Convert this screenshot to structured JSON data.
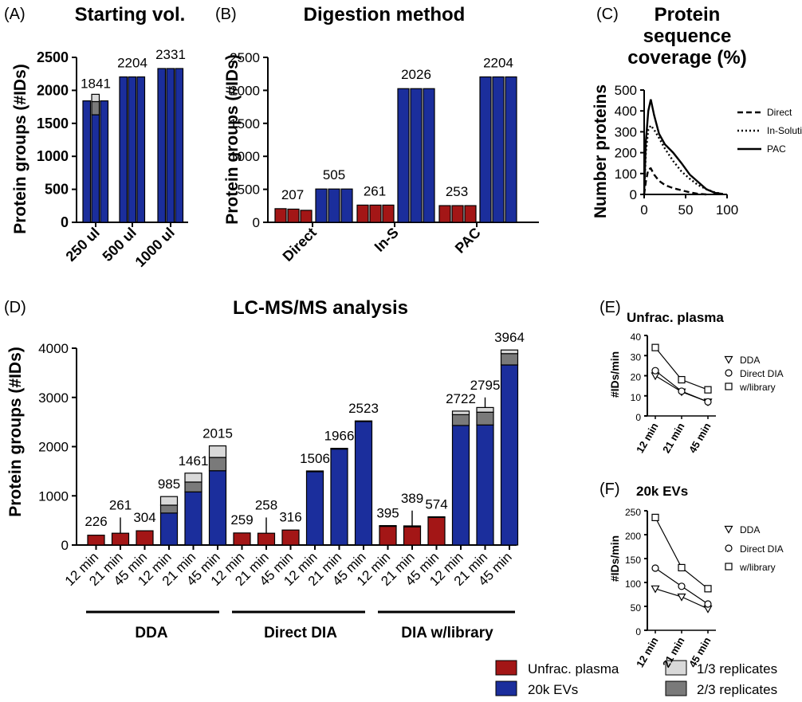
{
  "colors": {
    "unfrac": "#A31616",
    "ev": "#1B2E9C",
    "one_third": "#D9D9D9",
    "two_third": "#7A7A7A",
    "axis": "#000000"
  },
  "legend": {
    "unfrac": "Unfrac. plasma",
    "ev": "20k EVs",
    "one_third": "1/3 replicates",
    "two_third": "2/3 replicates"
  },
  "chart_data": [
    {
      "panel": "(A)",
      "type": "bar",
      "title": "Starting vol.",
      "ylabel": "Protein groups (#IDs)",
      "ylim": [
        0,
        2500
      ],
      "yticks": [
        0,
        500,
        1000,
        1500,
        2000,
        2500
      ],
      "categories": [
        "250 ul",
        "500 ul",
        "1000 ul"
      ],
      "series": [
        {
          "values": [
            [
              1841,
              1630,
              1841
            ],
            [
              2204,
              2204,
              2204
            ],
            [
              2331,
              2331,
              2331
            ]
          ]
        }
      ],
      "stack_two_third": [
        [
          0,
          200,
          0
        ],
        [
          0,
          0,
          0
        ],
        [
          0,
          0,
          0
        ]
      ],
      "stack_one_third": [
        [
          0,
          110,
          0
        ],
        [
          0,
          0,
          0
        ],
        [
          0,
          0,
          0
        ]
      ],
      "labels": [
        "1841",
        "2204",
        "2331"
      ]
    },
    {
      "panel": "(B)",
      "type": "bar",
      "title": "Digestion method",
      "ylabel": "Protein groups (#IDs)",
      "ylim": [
        0,
        2500
      ],
      "yticks": [
        0,
        500,
        1000,
        1500,
        2000,
        2500
      ],
      "categories": [
        "Direct",
        "In-S",
        "PAC"
      ],
      "series": [
        {
          "name": "Unfrac. plasma",
          "values": [
            [
              207,
              200,
              182
            ],
            [
              261,
              261,
              261
            ],
            [
              253,
              253,
              253
            ]
          ]
        },
        {
          "name": "20k EVs",
          "values": [
            [
              505,
              505,
              505
            ],
            [
              2026,
              2026,
              2026
            ],
            [
              2204,
              2204,
              2204
            ]
          ]
        }
      ],
      "labels_unfrac": [
        "207",
        "261",
        "253"
      ],
      "labels_ev": [
        "505",
        "2026",
        "2204"
      ]
    },
    {
      "panel": "(C)",
      "type": "line",
      "title": "Protein sequence coverage (%)",
      "ylabel": "Number proteins",
      "xlim": [
        0,
        100
      ],
      "ylim": [
        0,
        500
      ],
      "xticks": [
        0,
        50,
        100
      ],
      "yticks": [
        0,
        100,
        200,
        300,
        400,
        500
      ],
      "series": [
        {
          "name": "Direct",
          "style": "dashed",
          "x": [
            0,
            2,
            5,
            8,
            12,
            18,
            25,
            35,
            45,
            55,
            65,
            75
          ],
          "y": [
            0,
            60,
            120,
            125,
            95,
            65,
            45,
            30,
            20,
            10,
            3,
            0
          ]
        },
        {
          "name": "In-Solution",
          "style": "dotted",
          "x": [
            0,
            2,
            5,
            8,
            12,
            18,
            25,
            35,
            45,
            55,
            65,
            75,
            85,
            95
          ],
          "y": [
            0,
            200,
            310,
            330,
            310,
            270,
            220,
            160,
            110,
            75,
            45,
            25,
            10,
            2
          ]
        },
        {
          "name": "PAC",
          "style": "solid",
          "x": [
            0,
            2,
            5,
            8,
            12,
            18,
            25,
            35,
            45,
            55,
            65,
            75,
            85,
            95
          ],
          "y": [
            0,
            250,
            400,
            455,
            380,
            290,
            240,
            200,
            150,
            95,
            60,
            25,
            8,
            2
          ]
        }
      ]
    },
    {
      "panel": "(D)",
      "type": "bar",
      "title": "LC-MS/MS analysis",
      "ylabel": "Protein groups (#IDs)",
      "ylim": [
        0,
        4000
      ],
      "yticks": [
        0,
        1000,
        2000,
        3000,
        4000
      ],
      "categories": [
        "12 min",
        "21 min",
        "45 min",
        "12 min",
        "21 min",
        "45 min",
        "12 min",
        "21 min",
        "45 min",
        "12 min",
        "21 min",
        "45 min",
        "12 min",
        "21 min",
        "45 min",
        "12 min",
        "21 min",
        "45 min"
      ],
      "groups": [
        "DDA",
        "Direct DIA",
        "DIA w/library"
      ],
      "bars": [
        {
          "sample": "unfrac",
          "base": 200,
          "two_third": 0,
          "one_third": 0,
          "err": 226,
          "label": "226"
        },
        {
          "sample": "unfrac",
          "base": 240,
          "two_third": 0,
          "one_third": 0,
          "err": 560,
          "label": "261"
        },
        {
          "sample": "unfrac",
          "base": 290,
          "two_third": 0,
          "one_third": 0,
          "err": 304,
          "label": "304"
        },
        {
          "sample": "ev",
          "base": 650,
          "two_third": 160,
          "one_third": 175,
          "err": 985,
          "label": "985"
        },
        {
          "sample": "ev",
          "base": 1080,
          "two_third": 200,
          "one_third": 181,
          "err": 1461,
          "label": "1461"
        },
        {
          "sample": "ev",
          "base": 1510,
          "two_third": 270,
          "one_third": 235,
          "err": 2015,
          "label": "2015"
        },
        {
          "sample": "unfrac",
          "base": 245,
          "two_third": 0,
          "one_third": 0,
          "err": 259,
          "label": "259"
        },
        {
          "sample": "unfrac",
          "base": 240,
          "two_third": 0,
          "one_third": 0,
          "err": 560,
          "label": "258"
        },
        {
          "sample": "unfrac",
          "base": 305,
          "two_third": 0,
          "one_third": 0,
          "err": 316,
          "label": "316"
        },
        {
          "sample": "ev",
          "base": 1490,
          "two_third": 0,
          "one_third": 16,
          "err": 1506,
          "label": "1506"
        },
        {
          "sample": "ev",
          "base": 1950,
          "two_third": 0,
          "one_third": 16,
          "err": 1966,
          "label": "1966"
        },
        {
          "sample": "ev",
          "base": 2510,
          "two_third": 0,
          "one_third": 13,
          "err": 2523,
          "label": "2523"
        },
        {
          "sample": "unfrac",
          "base": 380,
          "two_third": 0,
          "one_third": 15,
          "err": 395,
          "label": "395"
        },
        {
          "sample": "unfrac",
          "base": 370,
          "two_third": 0,
          "one_third": 19,
          "err": 700,
          "label": "389"
        },
        {
          "sample": "unfrac",
          "base": 560,
          "two_third": 0,
          "one_third": 14,
          "err": 574,
          "label": "574"
        },
        {
          "sample": "ev",
          "base": 2430,
          "two_third": 220,
          "one_third": 72,
          "err": 2722,
          "label": "2722"
        },
        {
          "sample": "ev",
          "base": 2440,
          "two_third": 260,
          "one_third": 95,
          "err": 3000,
          "label": "2795"
        },
        {
          "sample": "ev",
          "base": 3660,
          "two_third": 230,
          "one_third": 74,
          "err": 3964,
          "label": "3964"
        }
      ]
    },
    {
      "panel": "(E)",
      "type": "line",
      "title": "Unfrac. plasma",
      "ylabel": "#IDs/min",
      "categories": [
        "12 min",
        "21 min",
        "45 min"
      ],
      "ylim": [
        0,
        40
      ],
      "yticks": [
        0,
        10,
        20,
        30,
        40
      ],
      "series": [
        {
          "name": "DDA",
          "marker": "triangle",
          "values": [
            20,
            12,
            7
          ]
        },
        {
          "name": "Direct DIA",
          "marker": "circle",
          "values": [
            22.5,
            12.3,
            7
          ]
        },
        {
          "name": "w/library",
          "marker": "square",
          "values": [
            34,
            18,
            13
          ]
        }
      ]
    },
    {
      "panel": "(F)",
      "type": "line",
      "title": "20k  EVs",
      "ylabel": "#IDs/min",
      "categories": [
        "12 min",
        "21 min",
        "45 min"
      ],
      "ylim": [
        0,
        250
      ],
      "yticks": [
        0,
        50,
        100,
        150,
        200,
        250
      ],
      "series": [
        {
          "name": "DDA",
          "marker": "triangle",
          "values": [
            87,
            70,
            45
          ]
        },
        {
          "name": "Direct DIA",
          "marker": "circle",
          "values": [
            130,
            92,
            55
          ]
        },
        {
          "name": "w/library",
          "marker": "square",
          "values": [
            236,
            131,
            87
          ]
        }
      ]
    }
  ]
}
